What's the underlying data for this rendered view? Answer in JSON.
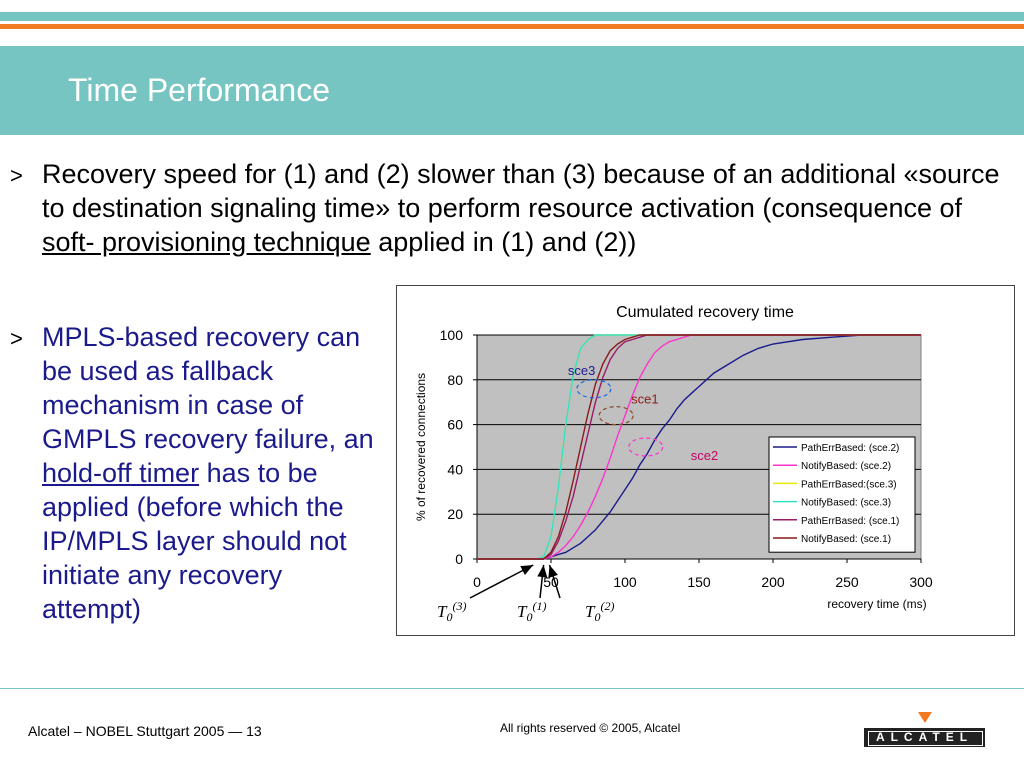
{
  "slide": {
    "title": "Time Performance",
    "bullet_marker": ">",
    "bullet1": {
      "before": "Recovery speed for (1) and (2) slower than (3) because of an additional «source to destination signaling time» to perform resource activation (consequence of ",
      "underlined": "soft- provisioning technique",
      "after": " applied in (1) and (2))"
    },
    "bullet2": {
      "before": "MPLS-based recovery can be used as fallback mechanism in case of GMPLS recovery failure, an ",
      "underlined": "hold-off timer",
      "after": " has to be applied (before which the IP/MPLS layer should not initiate any recovery attempt)"
    }
  },
  "footer": {
    "left": "Alcatel – NOBEL Stuttgart 2005 — 13",
    "center": "All rights reserved © 2005, Alcatel",
    "logo": "ALCATEL"
  },
  "colors": {
    "header": "#76c5c3",
    "accent": "#f07a1f",
    "bullet2_text": "#1a1a8c",
    "plot_bg": "#c0c0c0"
  },
  "chart_data": {
    "type": "line",
    "title": "Cumulated recovery time",
    "xlabel": "recovery time (ms)",
    "ylabel": "% of recovered connections",
    "xlim": [
      0,
      300
    ],
    "ylim": [
      0,
      100
    ],
    "x_ticks": [
      0,
      50,
      100,
      150,
      200,
      250,
      300
    ],
    "y_ticks": [
      0,
      20,
      40,
      60,
      80,
      100
    ],
    "grid": true,
    "legend_position": "right",
    "x": [
      0,
      20,
      40,
      45,
      50,
      55,
      60,
      65,
      70,
      75,
      80,
      85,
      90,
      95,
      100,
      105,
      110,
      115,
      120,
      125,
      130,
      135,
      140,
      145,
      150,
      160,
      170,
      180,
      190,
      200,
      220,
      240,
      260,
      280,
      300
    ],
    "series": [
      {
        "name": "PathErrBased: (sce.2)",
        "color": "#1a1a8c",
        "values": [
          0,
          0,
          0,
          0,
          1,
          2,
          3,
          5,
          7,
          10,
          13,
          17,
          21,
          26,
          31,
          36,
          42,
          47,
          53,
          58,
          62,
          67,
          71,
          74,
          77,
          83,
          87,
          91,
          94,
          96,
          98,
          99,
          100,
          100,
          100
        ]
      },
      {
        "name": "NotifyBased: (sce.2)",
        "color": "#ff33cc",
        "values": [
          0,
          0,
          0,
          0,
          1,
          3,
          6,
          10,
          15,
          21,
          28,
          36,
          45,
          55,
          64,
          73,
          81,
          87,
          92,
          95,
          97,
          98,
          99,
          100,
          100,
          100,
          100,
          100,
          100,
          100,
          100,
          100,
          100,
          100,
          100
        ]
      },
      {
        "name": "PathErrBased:(sce.3)",
        "color": "#e8e800",
        "values": [
          0,
          0,
          0,
          1,
          10,
          32,
          60,
          82,
          94,
          98,
          100,
          100,
          100,
          100,
          100,
          100,
          100,
          100,
          100,
          100,
          100,
          100,
          100,
          100,
          100,
          100,
          100,
          100,
          100,
          100,
          100,
          100,
          100,
          100,
          100
        ]
      },
      {
        "name": "NotifyBased: (sce.3)",
        "color": "#33e0c8",
        "values": [
          0,
          0,
          0,
          1,
          10,
          32,
          60,
          82,
          94,
          98,
          100,
          100,
          100,
          100,
          100,
          100,
          100,
          100,
          100,
          100,
          100,
          100,
          100,
          100,
          100,
          100,
          100,
          100,
          100,
          100,
          100,
          100,
          100,
          100,
          100
        ]
      },
      {
        "name": "PathErrBased: (sce.1)",
        "color": "#9a1a6a",
        "values": [
          0,
          0,
          0,
          0,
          2,
          8,
          17,
          28,
          42,
          56,
          70,
          81,
          89,
          94,
          97,
          98,
          99,
          100,
          100,
          100,
          100,
          100,
          100,
          100,
          100,
          100,
          100,
          100,
          100,
          100,
          100,
          100,
          100,
          100,
          100
        ]
      },
      {
        "name": "NotifyBased: (sce.1)",
        "color": "#8b1a1a",
        "values": [
          0,
          0,
          0,
          0,
          3,
          10,
          21,
          35,
          50,
          65,
          78,
          87,
          93,
          96,
          98,
          99,
          100,
          100,
          100,
          100,
          100,
          100,
          100,
          100,
          100,
          100,
          100,
          100,
          100,
          100,
          100,
          100,
          100,
          100,
          100
        ]
      }
    ],
    "annotations": [
      {
        "text": "sce3",
        "color": "#1a1a8c",
        "x": 79,
        "y": 76
      },
      {
        "text": "sce1",
        "color": "#8b1a1a",
        "x": 94,
        "y": 64
      },
      {
        "text": "sce2",
        "color": "#cc0066",
        "x": 114,
        "y": 50
      }
    ],
    "markers": [
      {
        "base": "T",
        "sub": "0",
        "sup": "(3)",
        "x": 38
      },
      {
        "base": "T",
        "sub": "0",
        "sup": "(1)",
        "x": 45
      },
      {
        "base": "T",
        "sub": "0",
        "sup": "(2)",
        "x": 49
      }
    ]
  }
}
